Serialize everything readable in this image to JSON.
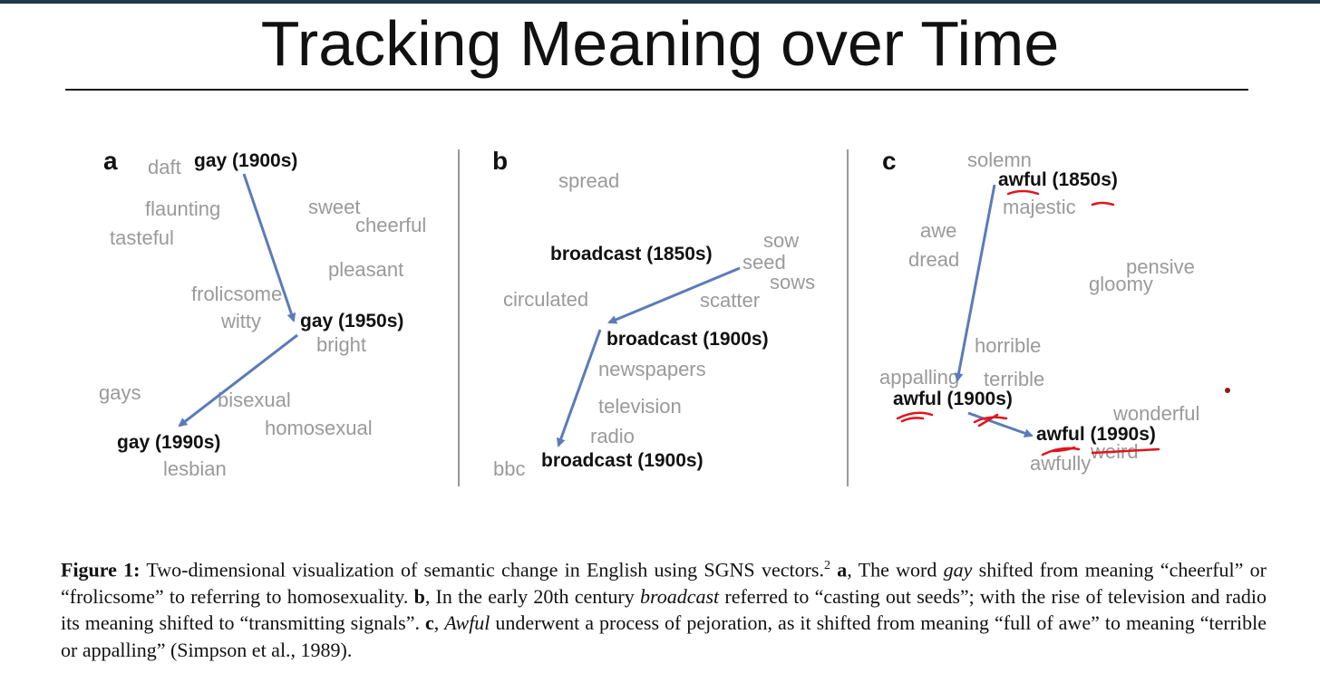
{
  "slide": {
    "title": "Tracking Meaning over Time"
  },
  "colors": {
    "arrow": "#5b7bb9",
    "word_gray": "#9a9a9a",
    "word_black": "#111111",
    "annotation_red": "#e0141e"
  },
  "panels": [
    {
      "label": "a",
      "focus_words": [
        "gay (1900s)",
        "gay (1950s)",
        "gay (1990s)"
      ],
      "neighbors": [
        "daft",
        "flaunting",
        "tasteful",
        "sweet",
        "cheerful",
        "pleasant",
        "frolicsome",
        "witty",
        "bright",
        "gays",
        "bisexual",
        "homosexual",
        "lesbian"
      ]
    },
    {
      "label": "b",
      "focus_words": [
        "broadcast (1850s)",
        "broadcast (1900s)",
        "broadcast (1900s)"
      ],
      "neighbors": [
        "spread",
        "sow",
        "seed",
        "sows",
        "circulated",
        "scatter",
        "newspapers",
        "television",
        "radio",
        "bbc"
      ]
    },
    {
      "label": "c",
      "focus_words": [
        "awful (1850s)",
        "awful (1900s)",
        "awful (1990s)"
      ],
      "neighbors": [
        "solemn",
        "majestic",
        "awe",
        "dread",
        "pensive",
        "gloomy",
        "horrible",
        "appalling",
        "terrible",
        "wonderful",
        "weird",
        "awfully"
      ]
    }
  ],
  "caption": {
    "label": "Figure 1:",
    "t1": " Two-dimensional visualization of semantic change in English using SGNS vectors.",
    "footnote": "2",
    "a_label": "a",
    "t2": ", The word ",
    "gay": "gay",
    "t3": " shifted from meaning “cheerful” or “frolicsome” to referring to homosexuality. ",
    "b_label": "b",
    "t4": ", In the early 20th century ",
    "broadcast": "broadcast",
    "t5": " referred to “casting out seeds”; with the rise of television and radio its meaning shifted to “transmitting signals”. ",
    "c_label": "c",
    "t6": ", ",
    "awful": "Awful",
    "t7": " underwent a process of pejoration, as it shifted from meaning “full of awe” to meaning “terrible or appalling” (Simpson et al., 1989)."
  }
}
